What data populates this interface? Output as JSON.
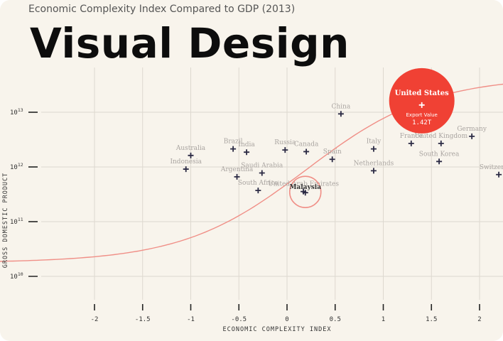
{
  "header": {
    "subtitle": "Economic Complexity Index Compared to GDP (2013)",
    "headline": "Visual Design"
  },
  "colors": {
    "background": "#f8f4ec",
    "grid": "#ddd8cf",
    "marker": "#2b2a44",
    "trend": "#f08f87",
    "highlight": "#f04134"
  },
  "chart_data": {
    "type": "scatter",
    "xlabel": "ECONOMIC COMPLEXITY INDEX",
    "ylabel": "GROSS DOMESTIC PRODUCT",
    "xlim": [
      -2.2,
      2.25
    ],
    "ylim": [
      9.8,
      13.9
    ],
    "yscale": "log",
    "x_ticks": [
      {
        "v": -2,
        "label": "-2"
      },
      {
        "v": -1.5,
        "label": "-1.5"
      },
      {
        "v": -1,
        "label": "-1"
      },
      {
        "v": -0.5,
        "label": "-0.5"
      },
      {
        "v": 0,
        "label": "0"
      },
      {
        "v": 0.5,
        "label": "0.5"
      },
      {
        "v": 1,
        "label": "1"
      },
      {
        "v": 1.5,
        "label": "1.5"
      },
      {
        "v": 2,
        "label": "2"
      }
    ],
    "y_ticks": [
      {
        "v": 13,
        "base": "10",
        "exp": "13"
      },
      {
        "v": 12,
        "base": "10",
        "exp": "12"
      },
      {
        "v": 11,
        "base": "10",
        "exp": "11"
      },
      {
        "v": 10,
        "base": "10",
        "exp": "10"
      }
    ],
    "grid": true,
    "points": [
      {
        "name": "Indonesia",
        "x": -1.05,
        "y": 11.96
      },
      {
        "name": "Australia",
        "x": -1.0,
        "y": 12.21
      },
      {
        "name": "Brazil",
        "x": -0.56,
        "y": 12.33
      },
      {
        "name": "India",
        "x": -0.42,
        "y": 12.27
      },
      {
        "name": "Argentina",
        "x": -0.52,
        "y": 11.82
      },
      {
        "name": "Saudi Arabia",
        "x": -0.26,
        "y": 11.89
      },
      {
        "name": "South Africa",
        "x": -0.3,
        "y": 11.57
      },
      {
        "name": "Russia",
        "x": -0.02,
        "y": 12.31
      },
      {
        "name": "Canada",
        "x": 0.2,
        "y": 12.28
      },
      {
        "name": "United Arab Emirates",
        "x": 0.17,
        "y": 11.55
      },
      {
        "name": "Malaysia",
        "x": 0.19,
        "y": 11.53
      },
      {
        "name": "Spain",
        "x": 0.47,
        "y": 12.14
      },
      {
        "name": "China",
        "x": 0.56,
        "y": 12.97
      },
      {
        "name": "Italy",
        "x": 0.9,
        "y": 12.33
      },
      {
        "name": "Netherlands",
        "x": 0.9,
        "y": 11.93
      },
      {
        "name": "France",
        "x": 1.29,
        "y": 12.43
      },
      {
        "name": "United Kingdom",
        "x": 1.6,
        "y": 12.43
      },
      {
        "name": "South Korea",
        "x": 1.58,
        "y": 12.1
      },
      {
        "name": "Germany",
        "x": 1.92,
        "y": 12.56
      },
      {
        "name": "Switzerland",
        "x": 2.2,
        "y": 11.86
      },
      {
        "name": "United States",
        "x": 1.4,
        "y": 13.21
      }
    ],
    "highlight": {
      "name": "United States",
      "caption": "Export Value",
      "value": "1.42T"
    },
    "annotation": {
      "name": "Malaysia"
    }
  }
}
